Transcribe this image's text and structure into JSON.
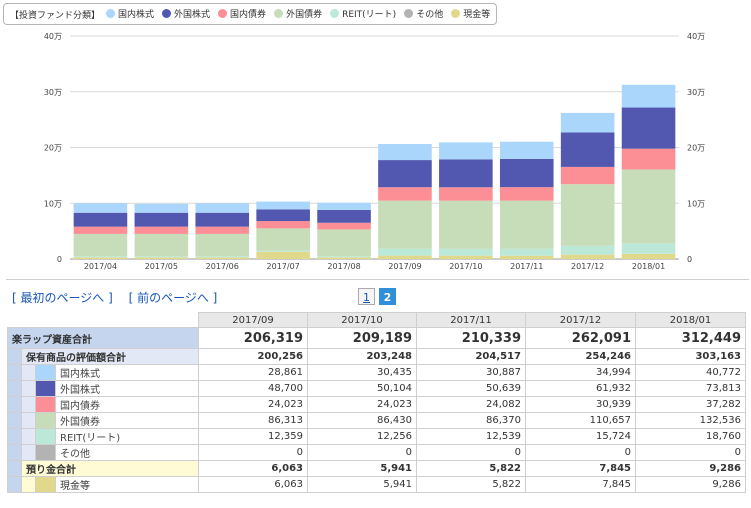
{
  "legend": {
    "title": "【投資ファンド分類】",
    "items": [
      {
        "label": "国内株式",
        "color": "#abd6fb"
      },
      {
        "label": "外国株式",
        "color": "#5258b0"
      },
      {
        "label": "国内債券",
        "color": "#fb8f95"
      },
      {
        "label": "外国債券",
        "color": "#c7ddb9"
      },
      {
        "label": "REIT(リート)",
        "color": "#bce8d7"
      },
      {
        "label": "その他",
        "color": "#b3b3b3"
      },
      {
        "label": "現金等",
        "color": "#e0d98c"
      }
    ]
  },
  "chart_data": {
    "type": "bar",
    "stacked": true,
    "categories": [
      "2017/04",
      "2017/05",
      "2017/06",
      "2017/07",
      "2017/08",
      "2017/09",
      "2017/10",
      "2017/11",
      "2017/12",
      "2018/01"
    ],
    "ylim": [
      0,
      400000
    ],
    "y_ticks": [
      {
        "value": 0,
        "label": "0"
      },
      {
        "value": 100000,
        "label": "10万"
      },
      {
        "value": 200000,
        "label": "20万"
      },
      {
        "value": 300000,
        "label": "30万"
      },
      {
        "value": 400000,
        "label": "40万"
      }
    ],
    "grid": true,
    "legend_position": "top-left",
    "series": [
      {
        "name": "現金等",
        "color": "#e0d98c",
        "values": [
          3000,
          3000,
          3000,
          13000,
          3000,
          6063,
          5941,
          5822,
          7845,
          9286
        ]
      },
      {
        "name": "その他",
        "color": "#b3b3b3",
        "values": [
          0,
          0,
          0,
          0,
          0,
          0,
          0,
          0,
          0,
          0
        ]
      },
      {
        "name": "REIT(リート)",
        "color": "#bce8d7",
        "values": [
          2000,
          2000,
          2000,
          2000,
          2000,
          12359,
          12256,
          12539,
          15724,
          18760
        ]
      },
      {
        "name": "外国債券",
        "color": "#c7ddb9",
        "values": [
          40000,
          40000,
          40000,
          40000,
          48000,
          86313,
          86430,
          86370,
          110657,
          132536
        ]
      },
      {
        "name": "国内債券",
        "color": "#fb8f95",
        "values": [
          13000,
          13000,
          13000,
          13000,
          12000,
          24023,
          24023,
          24082,
          30939,
          37282
        ]
      },
      {
        "name": "外国株式",
        "color": "#5258b0",
        "values": [
          25000,
          25000,
          25000,
          21000,
          23000,
          48700,
          50104,
          50639,
          61932,
          73813
        ]
      },
      {
        "name": "国内株式",
        "color": "#abd6fb",
        "values": [
          17000,
          16000,
          17000,
          14000,
          13000,
          28861,
          30435,
          30887,
          34994,
          40772
        ]
      }
    ]
  },
  "nav": {
    "first_page": "[ 最初のページへ ]",
    "prev_page": "[ 前のページへ ]"
  },
  "pager": {
    "pages": [
      "1",
      "2"
    ],
    "current": "2"
  },
  "table": {
    "months": [
      "2017/09",
      "2017/10",
      "2017/11",
      "2017/12",
      "2018/01"
    ],
    "total": {
      "label": "楽ラップ資産合計",
      "values": [
        "206,319",
        "209,189",
        "210,339",
        "262,091",
        "312,449"
      ]
    },
    "holdings": {
      "label": "保有商品の評価額合計",
      "values": [
        "200,256",
        "203,248",
        "204,517",
        "254,246",
        "303,163"
      ]
    },
    "assets": [
      {
        "label": "国内株式",
        "color": "#abd6fb",
        "values": [
          "28,861",
          "30,435",
          "30,887",
          "34,994",
          "40,772"
        ]
      },
      {
        "label": "外国株式",
        "color": "#5258b0",
        "values": [
          "48,700",
          "50,104",
          "50,639",
          "61,932",
          "73,813"
        ]
      },
      {
        "label": "国内債券",
        "color": "#fb8f95",
        "values": [
          "24,023",
          "24,023",
          "24,082",
          "30,939",
          "37,282"
        ]
      },
      {
        "label": "外国債券",
        "color": "#c7ddb9",
        "values": [
          "86,313",
          "86,430",
          "86,370",
          "110,657",
          "132,536"
        ]
      },
      {
        "label": "REIT(リート)",
        "color": "#bce8d7",
        "values": [
          "12,359",
          "12,256",
          "12,539",
          "15,724",
          "18,760"
        ]
      },
      {
        "label": "その他",
        "color": "#b3b3b3",
        "values": [
          "0",
          "0",
          "0",
          "0",
          "0"
        ]
      }
    ],
    "deposit": {
      "label": "預り金合計",
      "values": [
        "6,063",
        "5,941",
        "5,822",
        "7,845",
        "9,286"
      ]
    },
    "cash": {
      "label": "現金等",
      "color": "#e0d98c",
      "values": [
        "6,063",
        "5,941",
        "5,822",
        "7,845",
        "9,286"
      ]
    }
  }
}
